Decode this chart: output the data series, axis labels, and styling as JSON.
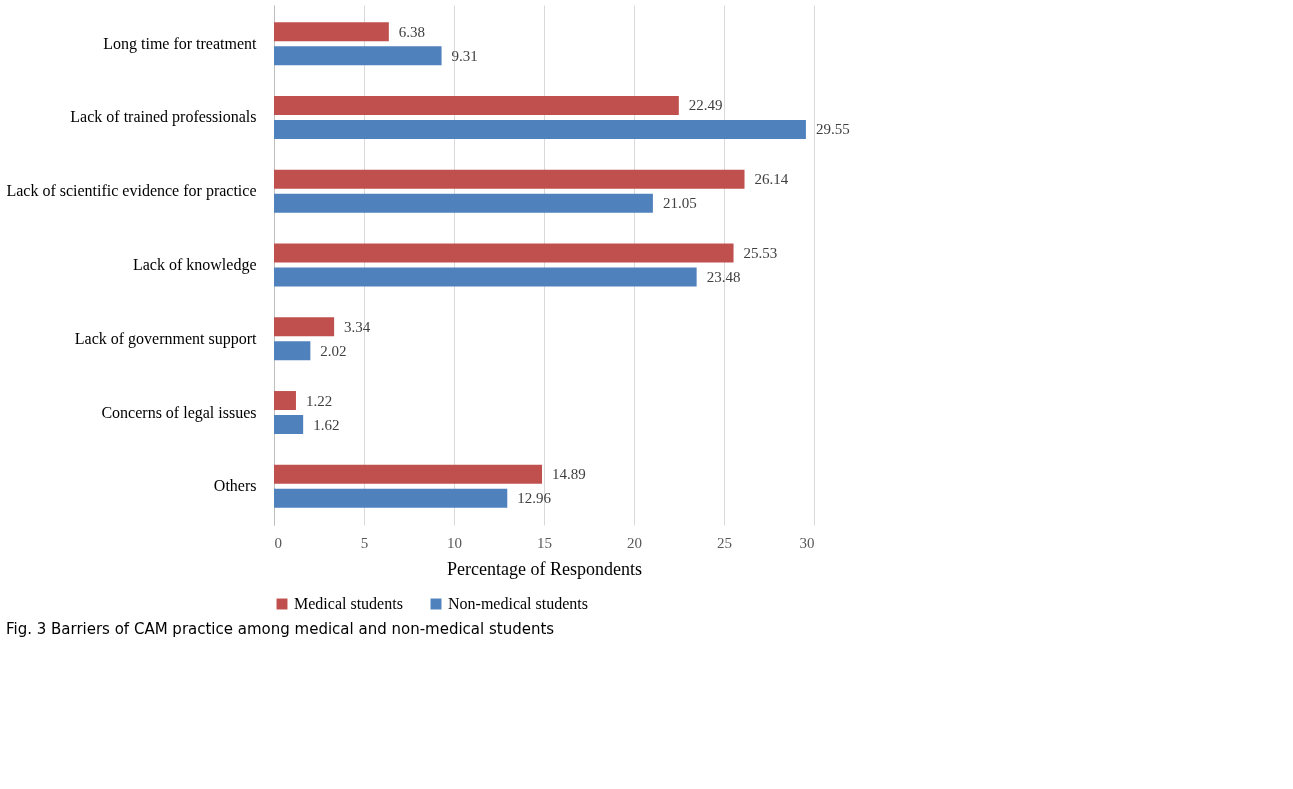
{
  "chart_data": {
    "type": "bar",
    "orientation": "horizontal",
    "title": "Fig. 3  Barriers of CAM practice among medical and non-medical students",
    "xlabel": "Percentage of Respondents",
    "categories": [
      "Long time for treatment",
      "Lack of trained professionals",
      "Lack of scientific evidence for practice",
      "Lack of knowledge",
      "Lack of government support",
      "Concerns of legal issues",
      "Others"
    ],
    "series": [
      {
        "name": "Medical students",
        "color": "#c0504d",
        "values": [
          6.38,
          22.49,
          26.14,
          25.53,
          3.34,
          1.22,
          14.89
        ]
      },
      {
        "name": "Non-medical students",
        "color": "#4f81bd",
        "values": [
          9.31,
          29.55,
          21.05,
          23.48,
          2.02,
          1.62,
          12.96
        ]
      }
    ],
    "xlim": [
      0,
      30
    ],
    "xticks": [
      0,
      5,
      10,
      15,
      20,
      25,
      30
    ],
    "grid": "x",
    "legend": "bottom",
    "data_labels": true
  }
}
